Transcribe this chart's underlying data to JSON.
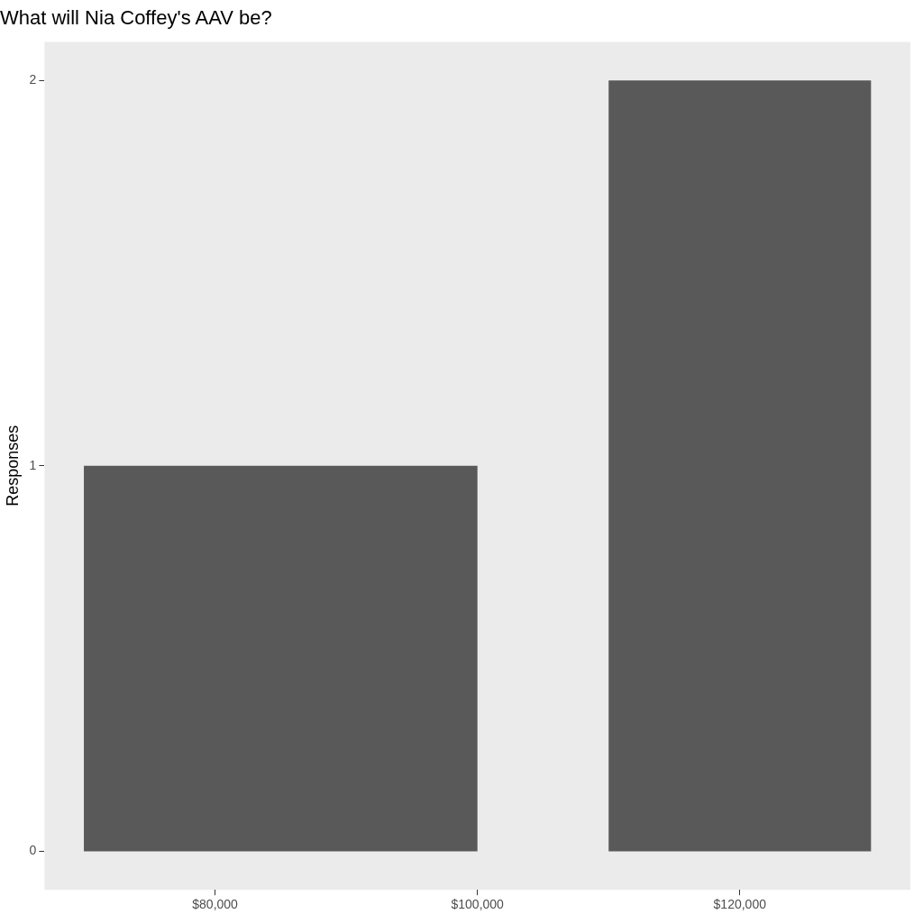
{
  "chart_data": {
    "type": "histogram",
    "title": "What will Nia Coffey's AAV be?",
    "ylabel": "Responses",
    "bins": [
      70000,
      100000,
      110000,
      130000
    ],
    "values": [
      1,
      0,
      2
    ],
    "color": "#595959",
    "xlim": [
      67000,
      133000
    ],
    "xticks": [
      {
        "value": 80000,
        "label": "$80,000"
      },
      {
        "value": 100000,
        "label": "$100,000"
      },
      {
        "value": 120000,
        "label": "$120,000"
      }
    ],
    "ylim": [
      -0.1,
      2.1
    ],
    "yticks": [
      0,
      1,
      2
    ],
    "grid": false,
    "legend": false
  }
}
